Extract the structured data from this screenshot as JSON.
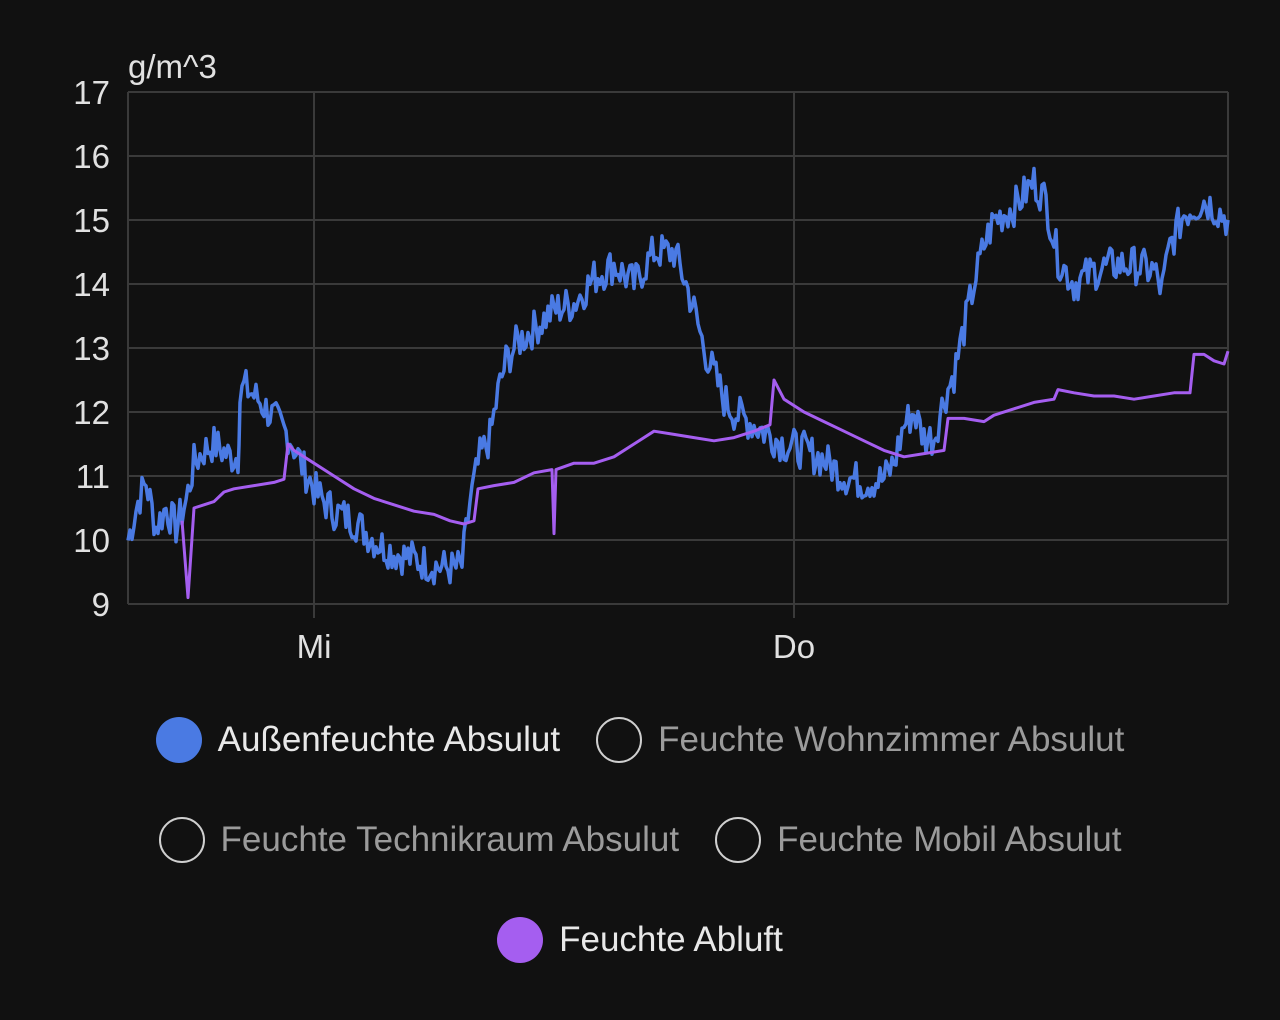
{
  "chart_data": {
    "type": "line",
    "ylabel": "g/m^3",
    "ylim": [
      9,
      17
    ],
    "y_ticks": [
      "17",
      "16",
      "15",
      "14",
      "13",
      "12",
      "11",
      "10",
      "9"
    ],
    "x_ticks": [
      {
        "label": "Mi",
        "x": 6
      },
      {
        "label": "Do",
        "x": 30
      }
    ],
    "xlim": [
      -3.3,
      51.7
    ],
    "grid": true,
    "legend": "bottom",
    "series": [
      {
        "name": "Außenfeuchte Absulut",
        "color": "#4a7ae3",
        "visible": true,
        "noise": 0.3,
        "points": [
          [
            -3.3,
            10.0
          ],
          [
            -2.8,
            10.6
          ],
          [
            -2.4,
            10.9
          ],
          [
            -1.9,
            10.2
          ],
          [
            -1.4,
            10.5
          ],
          [
            -0.9,
            10.2
          ],
          [
            -0.4,
            10.6
          ],
          [
            0.0,
            11.2
          ],
          [
            0.5,
            11.4
          ],
          [
            1.0,
            11.5
          ],
          [
            1.4,
            11.4
          ],
          [
            1.8,
            11.3
          ],
          [
            2.2,
            11.3
          ],
          [
            2.3,
            12.2
          ],
          [
            2.5,
            12.4
          ],
          [
            3.2,
            12.2
          ],
          [
            4.0,
            11.9
          ],
          [
            4.8,
            11.6
          ],
          [
            5.5,
            11.1
          ],
          [
            6.2,
            10.7
          ],
          [
            7.0,
            10.45
          ],
          [
            8.0,
            10.3
          ],
          [
            9.0,
            10.0
          ],
          [
            10.0,
            9.8
          ],
          [
            11.0,
            9.7
          ],
          [
            12.0,
            9.6
          ],
          [
            13.0,
            9.55
          ],
          [
            13.4,
            9.6
          ],
          [
            13.8,
            10.6
          ],
          [
            14.3,
            11.3
          ],
          [
            14.8,
            11.6
          ],
          [
            15.2,
            12.3
          ],
          [
            15.6,
            12.8
          ],
          [
            16.2,
            13.1
          ],
          [
            17.0,
            13.3
          ],
          [
            18.0,
            13.6
          ],
          [
            19.0,
            13.7
          ],
          [
            20.0,
            14.1
          ],
          [
            21.0,
            14.3
          ],
          [
            22.0,
            14.0
          ],
          [
            23.0,
            14.5
          ],
          [
            24.0,
            14.5
          ],
          [
            24.5,
            14.1
          ],
          [
            25.0,
            13.6
          ],
          [
            25.5,
            13.0
          ],
          [
            26.0,
            12.6
          ],
          [
            26.5,
            12.2
          ],
          [
            27.0,
            12.0
          ],
          [
            27.5,
            11.9
          ],
          [
            28.5,
            11.7
          ],
          [
            29.5,
            11.5
          ],
          [
            30.5,
            11.4
          ],
          [
            31.5,
            11.25
          ],
          [
            32.5,
            11.0
          ],
          [
            33.5,
            10.9
          ],
          [
            34.5,
            10.95
          ],
          [
            35.0,
            11.2
          ],
          [
            35.5,
            11.8
          ],
          [
            36.0,
            12.0
          ],
          [
            36.5,
            11.6
          ],
          [
            37.0,
            11.6
          ],
          [
            37.5,
            12.2
          ],
          [
            38.0,
            12.6
          ],
          [
            38.5,
            13.3
          ],
          [
            39.0,
            14.0
          ],
          [
            39.5,
            14.6
          ],
          [
            40.0,
            15.0
          ],
          [
            41.0,
            15.2
          ],
          [
            42.0,
            15.6
          ],
          [
            42.6,
            15.3
          ],
          [
            43.2,
            14.4
          ],
          [
            44.0,
            14.0
          ],
          [
            45.0,
            14.2
          ],
          [
            46.0,
            14.3
          ],
          [
            47.0,
            14.3
          ],
          [
            48.0,
            14.2
          ],
          [
            48.4,
            13.9
          ],
          [
            48.8,
            14.6
          ],
          [
            49.5,
            15.1
          ],
          [
            50.5,
            15.3
          ],
          [
            51.0,
            15.2
          ],
          [
            51.7,
            15.0
          ]
        ]
      },
      {
        "name": "Feuchte Wohnzimmer Absulut",
        "color": "#cfcfcf",
        "visible": false
      },
      {
        "name": "Feuchte Technikraum Absulut",
        "color": "#cfcfcf",
        "visible": false
      },
      {
        "name": "Feuchte Mobil Absulut",
        "color": "#cfcfcf",
        "visible": false
      },
      {
        "name": "Feuchte Abluft",
        "color": "#a55ef0",
        "visible": true,
        "noise": 0.0,
        "points": [
          [
            -0.6,
            10.3
          ],
          [
            -0.3,
            9.1
          ],
          [
            0.0,
            10.5
          ],
          [
            0.5,
            10.55
          ],
          [
            1.0,
            10.6
          ],
          [
            1.5,
            10.75
          ],
          [
            2.0,
            10.8
          ],
          [
            3.0,
            10.85
          ],
          [
            4.0,
            10.9
          ],
          [
            4.5,
            10.95
          ],
          [
            4.7,
            11.5
          ],
          [
            5.0,
            11.4
          ],
          [
            6.0,
            11.2
          ],
          [
            7.0,
            11.0
          ],
          [
            8.0,
            10.8
          ],
          [
            9.0,
            10.65
          ],
          [
            10.0,
            10.55
          ],
          [
            11.0,
            10.45
          ],
          [
            12.0,
            10.4
          ],
          [
            12.8,
            10.3
          ],
          [
            13.5,
            10.25
          ],
          [
            14.0,
            10.3
          ],
          [
            14.2,
            10.8
          ],
          [
            15.0,
            10.85
          ],
          [
            16.0,
            10.9
          ],
          [
            17.0,
            11.05
          ],
          [
            17.9,
            11.1
          ],
          [
            18.0,
            10.1
          ],
          [
            18.1,
            11.1
          ],
          [
            19.0,
            11.2
          ],
          [
            20.0,
            11.2
          ],
          [
            21.0,
            11.3
          ],
          [
            22.0,
            11.5
          ],
          [
            23.0,
            11.7
          ],
          [
            24.0,
            11.65
          ],
          [
            25.0,
            11.6
          ],
          [
            26.0,
            11.55
          ],
          [
            27.0,
            11.6
          ],
          [
            28.0,
            11.7
          ],
          [
            28.8,
            11.8
          ],
          [
            29.0,
            12.5
          ],
          [
            29.5,
            12.2
          ],
          [
            30.5,
            12.0
          ],
          [
            31.5,
            11.85
          ],
          [
            32.5,
            11.7
          ],
          [
            33.5,
            11.55
          ],
          [
            34.5,
            11.4
          ],
          [
            35.5,
            11.3
          ],
          [
            36.5,
            11.35
          ],
          [
            37.5,
            11.4
          ],
          [
            37.7,
            11.9
          ],
          [
            38.5,
            11.9
          ],
          [
            39.5,
            11.85
          ],
          [
            40.0,
            11.95
          ],
          [
            41.0,
            12.05
          ],
          [
            42.0,
            12.15
          ],
          [
            43.0,
            12.2
          ],
          [
            43.2,
            12.35
          ],
          [
            44.0,
            12.3
          ],
          [
            45.0,
            12.25
          ],
          [
            46.0,
            12.25
          ],
          [
            47.0,
            12.2
          ],
          [
            48.0,
            12.25
          ],
          [
            49.0,
            12.3
          ],
          [
            49.8,
            12.3
          ],
          [
            50.0,
            12.9
          ],
          [
            50.5,
            12.9
          ],
          [
            51.0,
            12.8
          ],
          [
            51.5,
            12.75
          ],
          [
            51.7,
            12.95
          ]
        ]
      }
    ]
  },
  "legend": {
    "rows": [
      [
        {
          "label": "Außenfeuchte Absulut",
          "color": "#4a7ae3",
          "active": true
        },
        {
          "label": "Feuchte Wohnzimmer Absulut",
          "color": "#cfcfcf",
          "active": false
        }
      ],
      [
        {
          "label": "Feuchte Technikraum Absulut",
          "color": "#cfcfcf",
          "active": false
        },
        {
          "label": "Feuchte Mobil Absulut",
          "color": "#cfcfcf",
          "active": false
        }
      ],
      [
        {
          "label": "Feuchte Abluft",
          "color": "#a55ef0",
          "active": true
        }
      ]
    ]
  }
}
